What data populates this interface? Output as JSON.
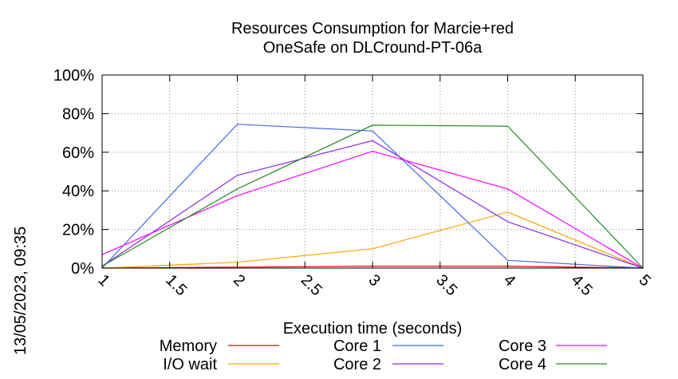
{
  "chart_data": {
    "type": "line",
    "title": "Resources Consumption for Marcie+red",
    "subtitle": "OneSafe on DLCround-PT-06a",
    "xlabel": "Execution time (seconds)",
    "ylabel": "",
    "xlim": [
      1,
      5
    ],
    "ylim": [
      0,
      100
    ],
    "x_ticks": [
      "1",
      "1.5",
      "2",
      "2.5",
      "3",
      "3.5",
      "4",
      "4.5",
      "5"
    ],
    "y_ticks": [
      "0%",
      "20%",
      "40%",
      "60%",
      "80%",
      "100%"
    ],
    "grid": true,
    "legend_position": "bottom",
    "x": [
      1,
      2,
      3,
      4,
      5
    ],
    "series": [
      {
        "name": "Memory",
        "color": "#ff0000",
        "values": [
          0,
          0.5,
          1,
          1,
          0
        ]
      },
      {
        "name": "I/O wait",
        "color": "#ffa500",
        "values": [
          0,
          3,
          10,
          29,
          0
        ]
      },
      {
        "name": "Core 1",
        "color": "#4169e1",
        "values": [
          0,
          74.5,
          71,
          4,
          0
        ]
      },
      {
        "name": "Core 2",
        "color": "#8a2be2",
        "values": [
          1,
          48,
          66,
          24,
          0
        ]
      },
      {
        "name": "Core 3",
        "color": "#ff00ff",
        "values": [
          7,
          37.5,
          60.5,
          41,
          0
        ]
      },
      {
        "name": "Core 4",
        "color": "#228b22",
        "values": [
          1,
          41,
          74,
          73.5,
          0
        ]
      }
    ],
    "timestamp": "13/05/2023, 09:35"
  }
}
